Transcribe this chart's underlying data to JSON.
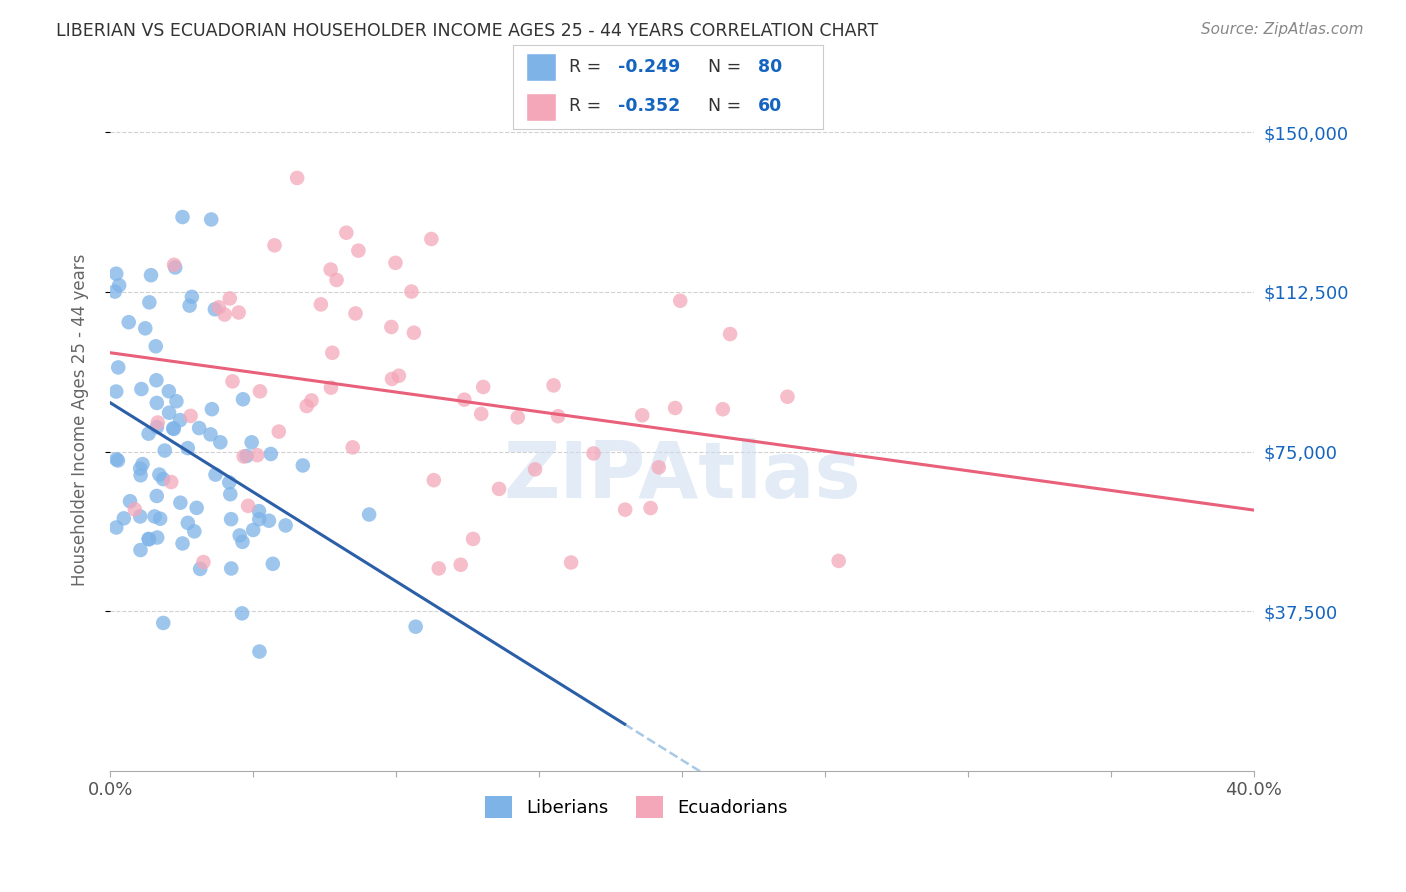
{
  "title": "LIBERIAN VS ECUADORIAN HOUSEHOLDER INCOME AGES 25 - 44 YEARS CORRELATION CHART",
  "source": "Source: ZipAtlas.com",
  "ylabel": "Householder Income Ages 25 - 44 years",
  "ytick_labels": [
    "$37,500",
    "$75,000",
    "$112,500",
    "$150,000"
  ],
  "ytick_values": [
    37500,
    75000,
    112500,
    150000
  ],
  "xlim": [
    0.0,
    0.4
  ],
  "ylim": [
    0,
    165000
  ],
  "liberian_color": "#7EB3E8",
  "ecuadorian_color": "#F4A7B9",
  "liberian_line_color": "#2B5FA8",
  "ecuadorian_line_color": "#E8607A",
  "dashed_line_color": "#A8C8E8",
  "background_color": "#FFFFFF",
  "grid_color": "#CCCCCC",
  "title_color": "#333333",
  "legend_R_color": "#1565C0",
  "legend_N_color": "#1565C0",
  "watermark_color": "#D0DFF0"
}
